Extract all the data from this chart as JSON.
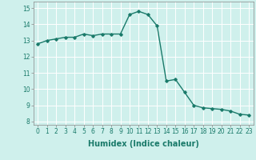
{
  "x": [
    0,
    1,
    2,
    3,
    4,
    5,
    6,
    7,
    8,
    9,
    10,
    11,
    12,
    13,
    14,
    15,
    16,
    17,
    18,
    19,
    20,
    21,
    22,
    23
  ],
  "y": [
    12.8,
    13.0,
    13.1,
    13.2,
    13.2,
    13.4,
    13.3,
    13.4,
    13.4,
    13.4,
    14.6,
    14.8,
    14.6,
    13.9,
    10.5,
    10.6,
    9.8,
    9.0,
    8.85,
    8.8,
    8.75,
    8.65,
    8.45,
    8.4
  ],
  "line_color": "#1a7a6a",
  "marker": "D",
  "markersize": 1.8,
  "linewidth": 1.0,
  "bg_color": "#cff0ec",
  "grid_color": "#ffffff",
  "xlabel": "Humidex (Indice chaleur)",
  "ylabel": "",
  "title": "",
  "xlim": [
    -0.5,
    23.5
  ],
  "ylim": [
    7.8,
    15.4
  ],
  "yticks": [
    8,
    9,
    10,
    11,
    12,
    13,
    14,
    15
  ],
  "xticks": [
    0,
    1,
    2,
    3,
    4,
    5,
    6,
    7,
    8,
    9,
    10,
    11,
    12,
    13,
    14,
    15,
    16,
    17,
    18,
    19,
    20,
    21,
    22,
    23
  ],
  "tick_fontsize": 5.5,
  "xlabel_fontsize": 7.0
}
